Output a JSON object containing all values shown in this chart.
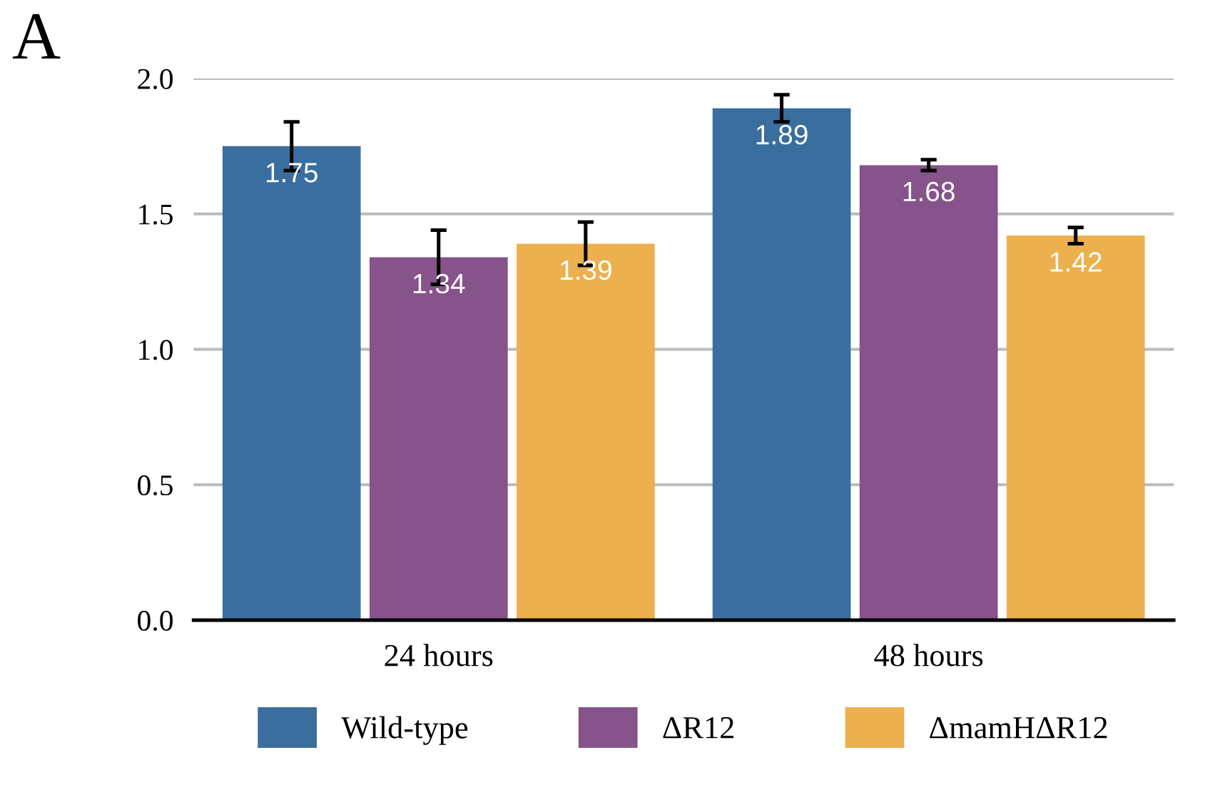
{
  "chart_data": {
    "type": "bar",
    "title": "A",
    "categories": [
      "24 hours",
      "48 hours"
    ],
    "series": [
      {
        "name": "Wild-type",
        "color": "#3a6e9f",
        "values": [
          1.75,
          1.89
        ],
        "errors": [
          0.09,
          0.05
        ]
      },
      {
        "name": "ΔR12",
        "color": "#86538b",
        "values": [
          1.34,
          1.68
        ],
        "errors": [
          0.1,
          0.02
        ]
      },
      {
        "name": "ΔmamHΔR12",
        "color": "#ecb04e",
        "values": [
          1.39,
          1.42
        ],
        "errors": [
          0.08,
          0.03
        ]
      }
    ],
    "ylim": [
      0,
      2.0
    ],
    "yticks": [
      {
        "value": 0,
        "label": "0.0"
      },
      {
        "value": 0.5,
        "label": "0.5"
      },
      {
        "value": 1.0,
        "label": "1.0"
      },
      {
        "value": 1.5,
        "label": "1.5"
      },
      {
        "value": 2.0,
        "label": "2.0"
      }
    ],
    "grid": "y",
    "legend": "bottom",
    "data_labels": true
  }
}
